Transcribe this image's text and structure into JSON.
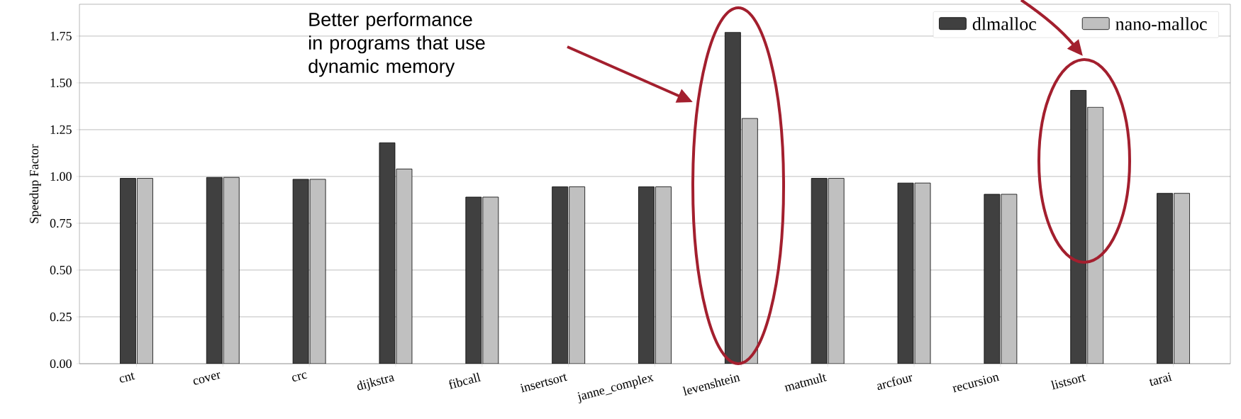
{
  "chart_data": {
    "type": "bar",
    "ylabel": "Speedup Factor",
    "categories": [
      "cnt",
      "cover",
      "crc",
      "dijkstra",
      "fibcall",
      "insertsort",
      "janne_complex",
      "levenshtein",
      "matmult",
      "arcfour",
      "recursion",
      "listsort",
      "tarai"
    ],
    "series": [
      {
        "name": "dlmalloc",
        "color": "#404040",
        "values": [
          0.99,
          0.995,
          0.985,
          1.18,
          0.89,
          0.945,
          0.945,
          1.77,
          0.99,
          0.965,
          0.905,
          1.46,
          0.91
        ]
      },
      {
        "name": "nano-malloc",
        "color": "#c0c0c0",
        "values": [
          0.99,
          0.995,
          0.985,
          1.04,
          0.89,
          0.945,
          0.945,
          1.31,
          0.99,
          0.965,
          0.905,
          1.37,
          0.91
        ]
      }
    ],
    "ylim": [
      0,
      1.92
    ],
    "yticks": [
      {
        "value": 0,
        "label": "0.00"
      },
      {
        "value": 0.25,
        "label": "0.25"
      },
      {
        "value": 0.5,
        "label": "0.50"
      },
      {
        "value": 0.75,
        "label": "0.75"
      },
      {
        "value": 1,
        "label": "1.00"
      },
      {
        "value": 1.25,
        "label": "1.25"
      },
      {
        "value": 1.5,
        "label": "1.50"
      },
      {
        "value": 1.75,
        "label": "1.75"
      }
    ],
    "grid": "y",
    "legend": "top right",
    "annotations": [
      "Better performance in programs that use dynamic memory"
    ]
  }
}
